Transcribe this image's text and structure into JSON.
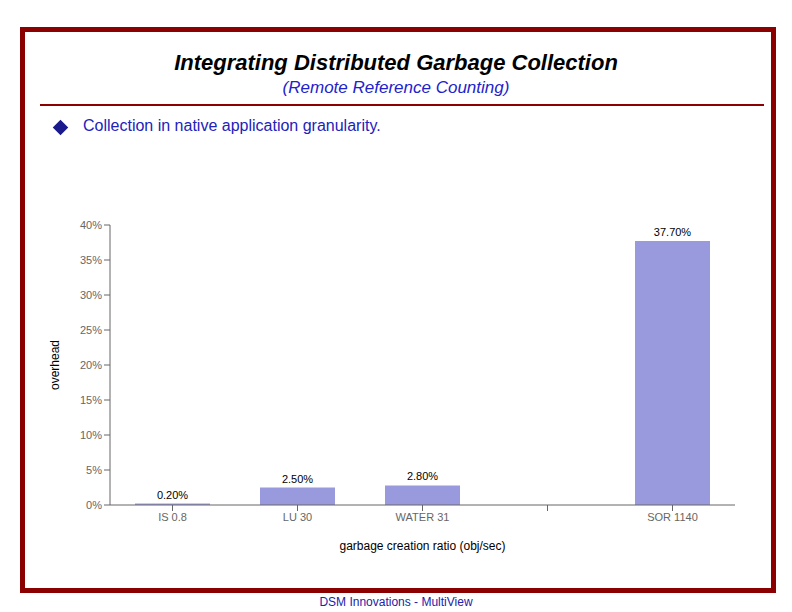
{
  "chart_data": {
    "type": "bar",
    "title": "Integrating Distributed Garbage Collection",
    "subtitle": "(Remote Reference Counting)",
    "annotations": [
      "Collection in native application granularity.",
      "DSM Innovations  - MultiView"
    ],
    "categories": [
      "IS  0.8",
      "LU  30",
      "WATER  31",
      null,
      "SOR  1140"
    ],
    "values": [
      0.2,
      2.5,
      2.8,
      0.0,
      37.7
    ],
    "value_labels": [
      "0.20%",
      "2.50%",
      "2.80%",
      null,
      "37.70%"
    ],
    "data_labels": true,
    "color": "#9999dd",
    "xlabel": "garbage creation ratio (obj/sec)",
    "ylabel": "overhead",
    "ylim": [
      0,
      40
    ],
    "yticks": [
      {
        "value": 0,
        "label": "0%"
      },
      {
        "value": 5,
        "label": "5%"
      },
      {
        "value": 10,
        "label": "10%"
      },
      {
        "value": 15,
        "label": "15%"
      },
      {
        "value": 20,
        "label": "20%"
      },
      {
        "value": 25,
        "label": "25%"
      },
      {
        "value": 30,
        "label": "30%"
      },
      {
        "value": 35,
        "label": "35%"
      },
      {
        "value": 40,
        "label": "40%"
      }
    ],
    "grid": false
  }
}
